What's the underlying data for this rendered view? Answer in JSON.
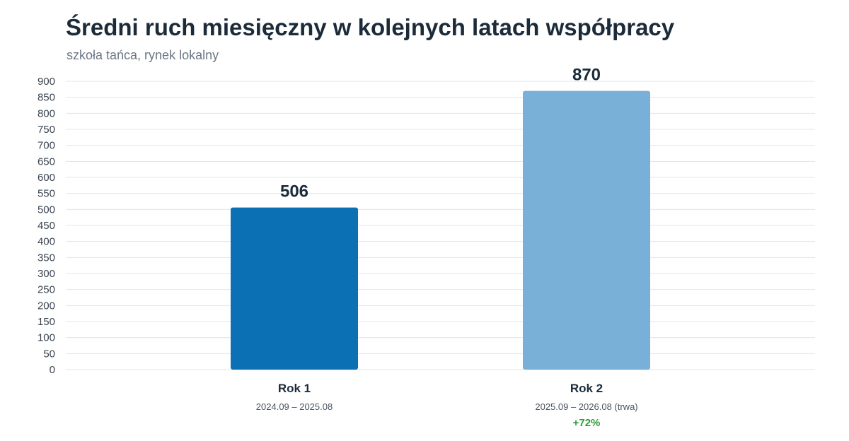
{
  "chart_data": {
    "type": "bar",
    "title": "Średni ruch miesięczny w kolejnych latach współpracy",
    "subtitle": "szkoła tańca, rynek lokalny",
    "xlabel": "",
    "ylabel": "",
    "ylim": [
      0,
      900
    ],
    "y_ticks": [
      0,
      50,
      100,
      150,
      200,
      250,
      300,
      350,
      400,
      450,
      500,
      550,
      600,
      650,
      700,
      750,
      800,
      850,
      900
    ],
    "grid": true,
    "categories": [
      "Rok 1",
      "Rok 2"
    ],
    "category_ranges": [
      "2024.09 – 2025.08",
      "2025.09 – 2026.08 (trwa)"
    ],
    "values": [
      506,
      870
    ],
    "data_labels": [
      "506",
      "870"
    ],
    "annotations": [
      {
        "category": "Rok 2",
        "text": "+72%"
      }
    ],
    "colors": {
      "bar_1": "#0b71b4",
      "bar_2": "#78b0d7",
      "growth": "#2e9d3a",
      "grid": "#e1e5ea"
    }
  }
}
